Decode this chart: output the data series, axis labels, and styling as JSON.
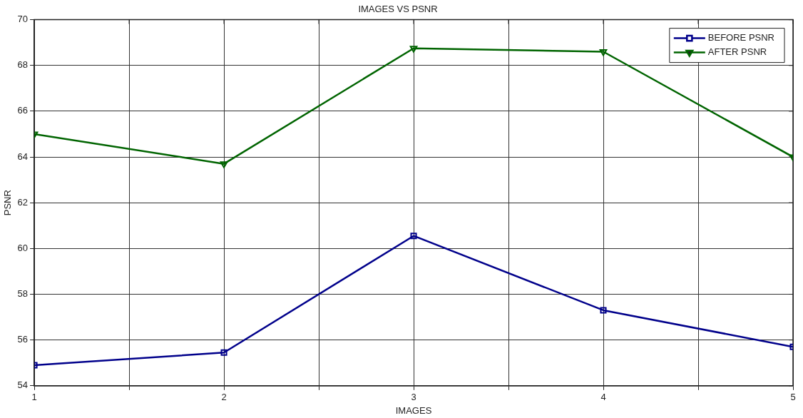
{
  "chart_data": {
    "type": "line",
    "title": "IMAGES VS PSNR",
    "xlabel": "IMAGES",
    "ylabel": "PSNR",
    "x": [
      1,
      2,
      3,
      4,
      5
    ],
    "series": [
      {
        "name": "BEFORE PSNR",
        "color": "#00008b",
        "marker": "square",
        "values": [
          54.9,
          55.45,
          60.55,
          57.3,
          55.7
        ]
      },
      {
        "name": "AFTER PSNR",
        "color": "#006400",
        "marker": "triangle",
        "values": [
          65.0,
          63.7,
          68.75,
          68.6,
          64.0
        ]
      }
    ],
    "xlim": [
      1,
      5
    ],
    "xticks": [
      1,
      {
        "value": 1.5,
        "label": null
      },
      2,
      {
        "value": 2.5,
        "label": null
      },
      3,
      {
        "value": 3.5,
        "label": null
      },
      4,
      {
        "value": 4.5,
        "label": null
      },
      5
    ],
    "ylim": [
      54,
      70
    ],
    "yticks": [
      54,
      56,
      58,
      60,
      62,
      64,
      66,
      68,
      70
    ],
    "grid": true,
    "legend": "top right",
    "line_style": "solid"
  }
}
